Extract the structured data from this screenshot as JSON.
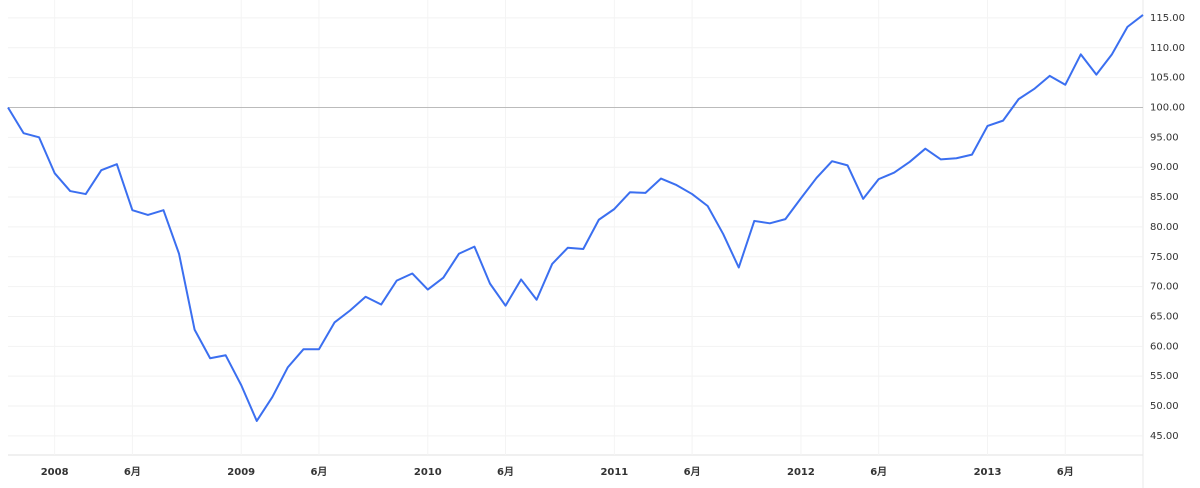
{
  "chart_data": {
    "type": "line",
    "categories": [
      null,
      null,
      null,
      "2008",
      null,
      null,
      null,
      null,
      "6月",
      null,
      null,
      null,
      null,
      null,
      null,
      "2009",
      null,
      null,
      null,
      null,
      "6月",
      null,
      null,
      null,
      null,
      null,
      null,
      "2010",
      null,
      null,
      null,
      null,
      "6月",
      null,
      null,
      null,
      null,
      null,
      null,
      "2011",
      null,
      null,
      null,
      null,
      "6月",
      null,
      null,
      null,
      null,
      null,
      null,
      "2012",
      null,
      null,
      null,
      null,
      "6月",
      null,
      null,
      null,
      null,
      null,
      null,
      "2013",
      null,
      null,
      null,
      null,
      "6月",
      null,
      null,
      null,
      null,
      null
    ],
    "series": [
      {
        "color": "#3b6ff0",
        "values": [
          100,
          95.7,
          95,
          89,
          86,
          85.5,
          89.5,
          90.5,
          82.8,
          82,
          82.8,
          75.5,
          62.8,
          58,
          58.5,
          53.5,
          47.5,
          51.5,
          56.5,
          59.5,
          59.5,
          64,
          66,
          68.3,
          67,
          71,
          72.2,
          69.5,
          71.5,
          75.5,
          76.7,
          70.5,
          66.8,
          71.2,
          67.8,
          73.8,
          76.5,
          76.3,
          81.2,
          83,
          85.8,
          85.7,
          88.1,
          87,
          85.5,
          83.5,
          78.8,
          73.2,
          81,
          80.6,
          81.3,
          84.8,
          88.2,
          91,
          90.3,
          84.7,
          88,
          89.1,
          90.9,
          93.1,
          91.3,
          91.5,
          92.1,
          96.9,
          97.8,
          101.4,
          103.1,
          105.3,
          103.8,
          108.9,
          105.5,
          108.9,
          113.5,
          115.5
        ]
      }
    ],
    "ylim": [
      41.8,
      118
    ],
    "yticks": [
      {
        "value": 45,
        "label": "45.00"
      },
      {
        "value": 50,
        "label": "50.00"
      },
      {
        "value": 55,
        "label": "55.00"
      },
      {
        "value": 60,
        "label": "60.00"
      },
      {
        "value": 65,
        "label": "65.00"
      },
      {
        "value": 70,
        "label": "70.00"
      },
      {
        "value": 75,
        "label": "75.00"
      },
      {
        "value": 80,
        "label": "80.00"
      },
      {
        "value": 85,
        "label": "85.00"
      },
      {
        "value": 90,
        "label": "90.00"
      },
      {
        "value": 95,
        "label": "95.00"
      },
      {
        "value": 100,
        "label": "100.00"
      },
      {
        "value": 105,
        "label": "105.00"
      },
      {
        "value": 110,
        "label": "110.00"
      },
      {
        "value": 115,
        "label": "115.00"
      }
    ],
    "reference_line": 100,
    "grid": true
  }
}
